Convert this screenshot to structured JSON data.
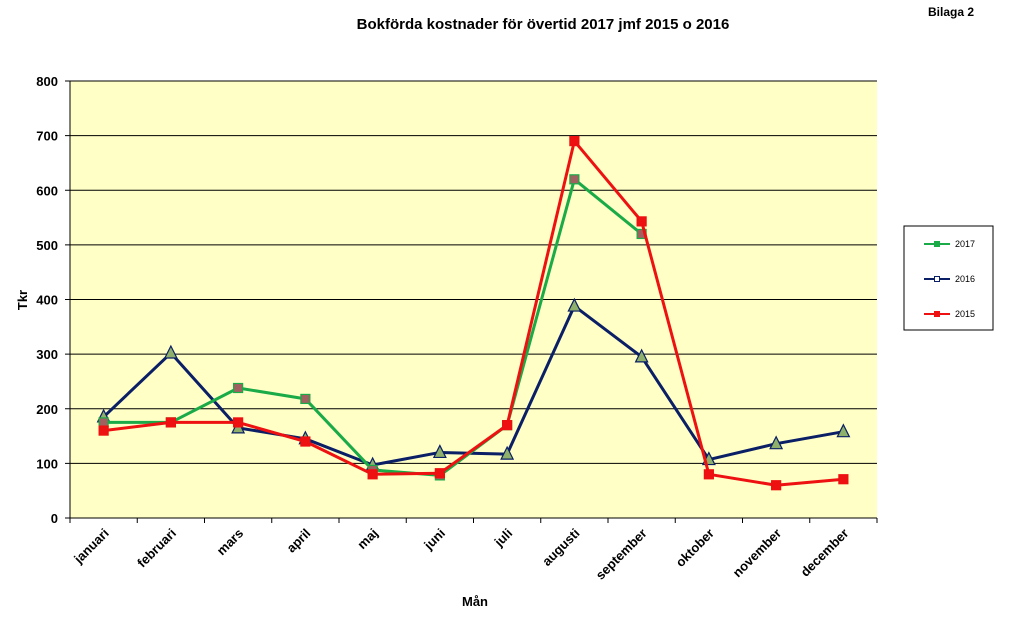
{
  "corner_label": "Bilaga 2",
  "chart_data": {
    "type": "line",
    "title": "Bokförda kostnader för övertid 2017 jmf 2015 o 2016",
    "xlabel": "Mån",
    "ylabel": "Tkr",
    "ylim": [
      0,
      800
    ],
    "yticks": [
      "0",
      "100",
      "200",
      "300",
      "400",
      "500",
      "600",
      "700",
      "800"
    ],
    "grid": true,
    "plot_background": "#ffffc6",
    "legend_position": "right",
    "categories": [
      "januari",
      "februari",
      "mars",
      "april",
      "maj",
      "juni",
      "juli",
      "augusti",
      "september",
      "oktober",
      "november",
      "december"
    ],
    "series": [
      {
        "name": "2017",
        "color": "#1aaa48",
        "marker": "square",
        "marker_fill": "#a06060",
        "values": [
          175,
          175,
          238,
          218,
          88,
          78,
          170,
          620,
          520,
          null,
          null,
          null
        ]
      },
      {
        "name": "2016",
        "color": "#0a1f66",
        "marker": "triangle",
        "marker_fill": "#8fb06a",
        "values": [
          185,
          302,
          165,
          145,
          97,
          120,
          117,
          388,
          295,
          107,
          136,
          158
        ]
      },
      {
        "name": "2015",
        "color": "#ee1111",
        "marker": "square",
        "marker_fill": "#ee1111",
        "values": [
          160,
          175,
          175,
          140,
          80,
          82,
          170,
          690,
          543,
          80,
          60,
          71
        ]
      }
    ]
  }
}
